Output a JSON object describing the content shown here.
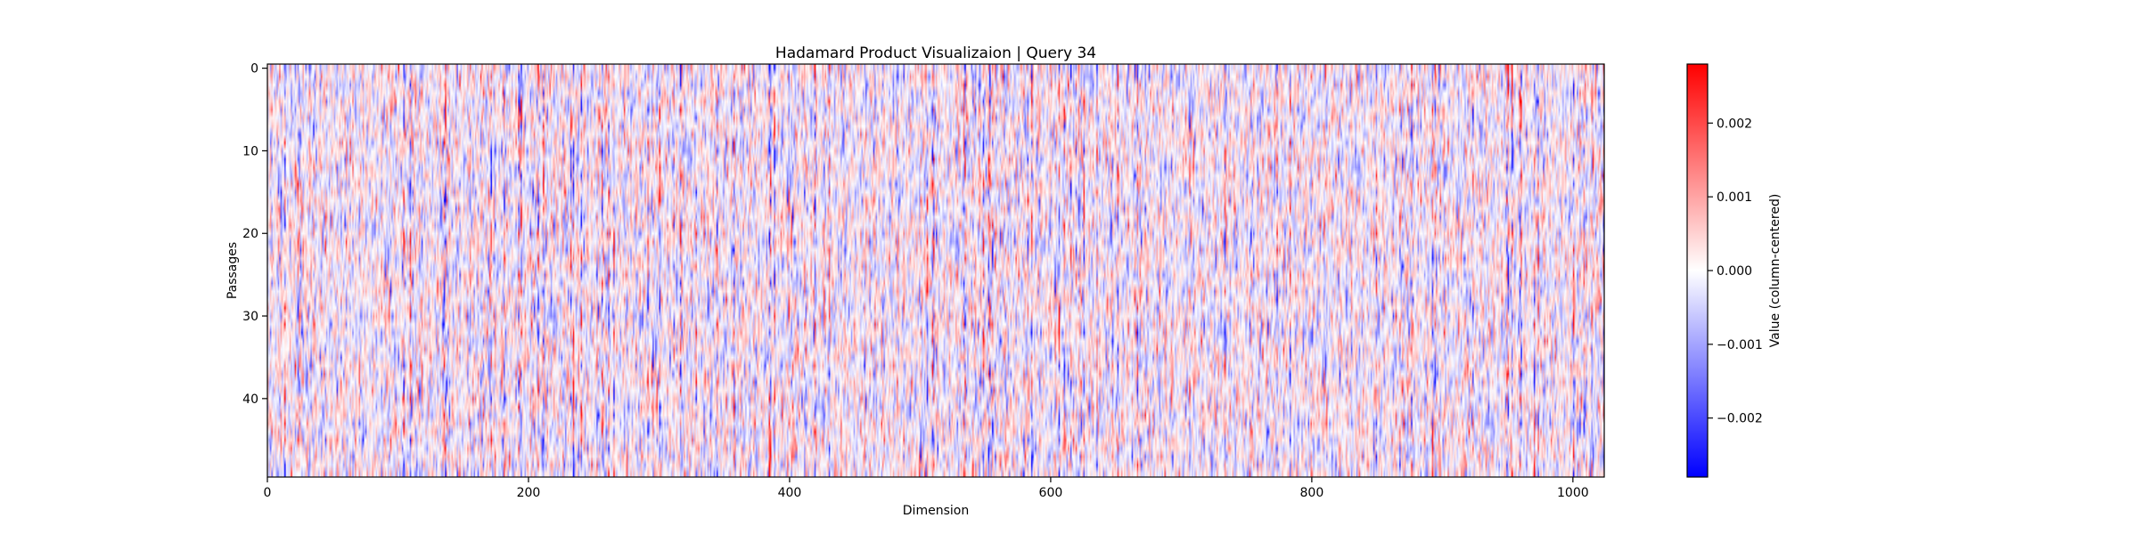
{
  "chart_data": {
    "type": "heatmap",
    "title": "Hadamard Product Visualizaion | Query 34",
    "xlabel": "Dimension",
    "ylabel": "Passages",
    "xlim": [
      0,
      1024
    ],
    "ylim": [
      50,
      0
    ],
    "rows": 50,
    "columns": 1024,
    "x_ticks": [
      0,
      200,
      400,
      600,
      800,
      1000
    ],
    "x_tick_labels": [
      "0",
      "200",
      "400",
      "600",
      "800",
      "1000"
    ],
    "y_ticks": [
      0,
      10,
      20,
      30,
      40
    ],
    "y_tick_labels": [
      "0",
      "10",
      "20",
      "30",
      "40"
    ],
    "colormap": "bwr",
    "colormap_colors": [
      "#0000ff",
      "#ffffff",
      "#ff0000"
    ],
    "value_range": [
      -0.0028,
      0.0028
    ],
    "colorbar": {
      "label": "Value (column-centered)",
      "ticks": [
        -0.002,
        -0.001,
        0.0,
        0.001,
        0.002
      ],
      "tick_labels": [
        "−0.002",
        "−0.001",
        "0.000",
        "0.001",
        "0.002"
      ]
    },
    "grid": false,
    "legend": "none"
  }
}
